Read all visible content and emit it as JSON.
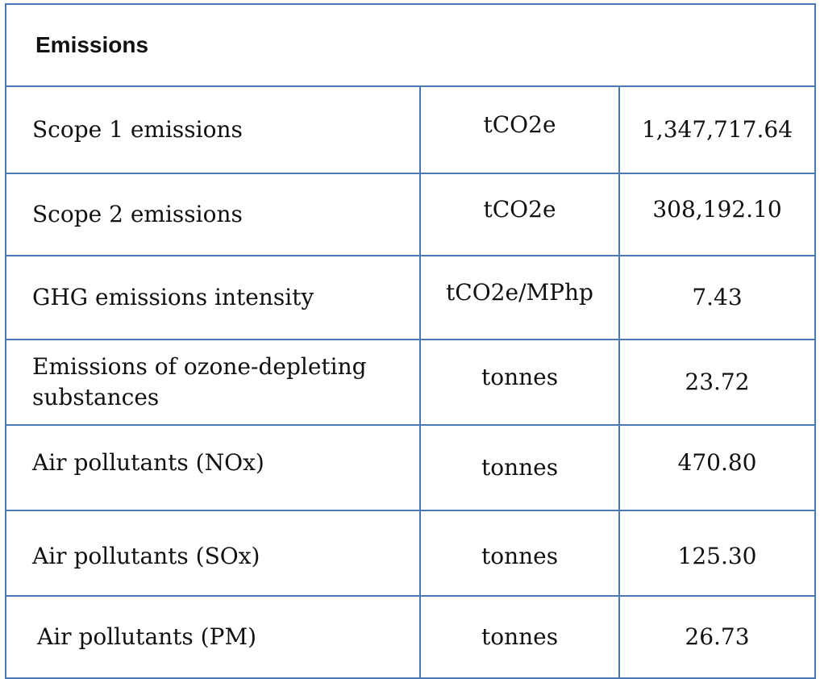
{
  "table": {
    "title": "Emissions",
    "rows": [
      {
        "label": "Scope 1 emissions",
        "unit": "tCO2e",
        "value": "1,347,717.64"
      },
      {
        "label": "Scope 2 emissions",
        "unit": "tCO2e",
        "value": "308,192.10"
      },
      {
        "label": "GHG emissions intensity",
        "unit": "tCO2e/MPhp",
        "value": "7.43"
      },
      {
        "label": "Emissions of ozone-depleting substances",
        "unit": "tonnes",
        "value": "23.72"
      },
      {
        "label": "Air pollutants (NOx)",
        "unit": "tonnes",
        "value": "470.80"
      },
      {
        "label": "Air pollutants (SOx)",
        "unit": "tonnes",
        "value": "125.30"
      },
      {
        "label": "Air pollutants (PM)",
        "unit": "tonnes",
        "value": "26.73"
      }
    ]
  },
  "colors": {
    "border": "#4a78b5",
    "text": "#111111"
  }
}
